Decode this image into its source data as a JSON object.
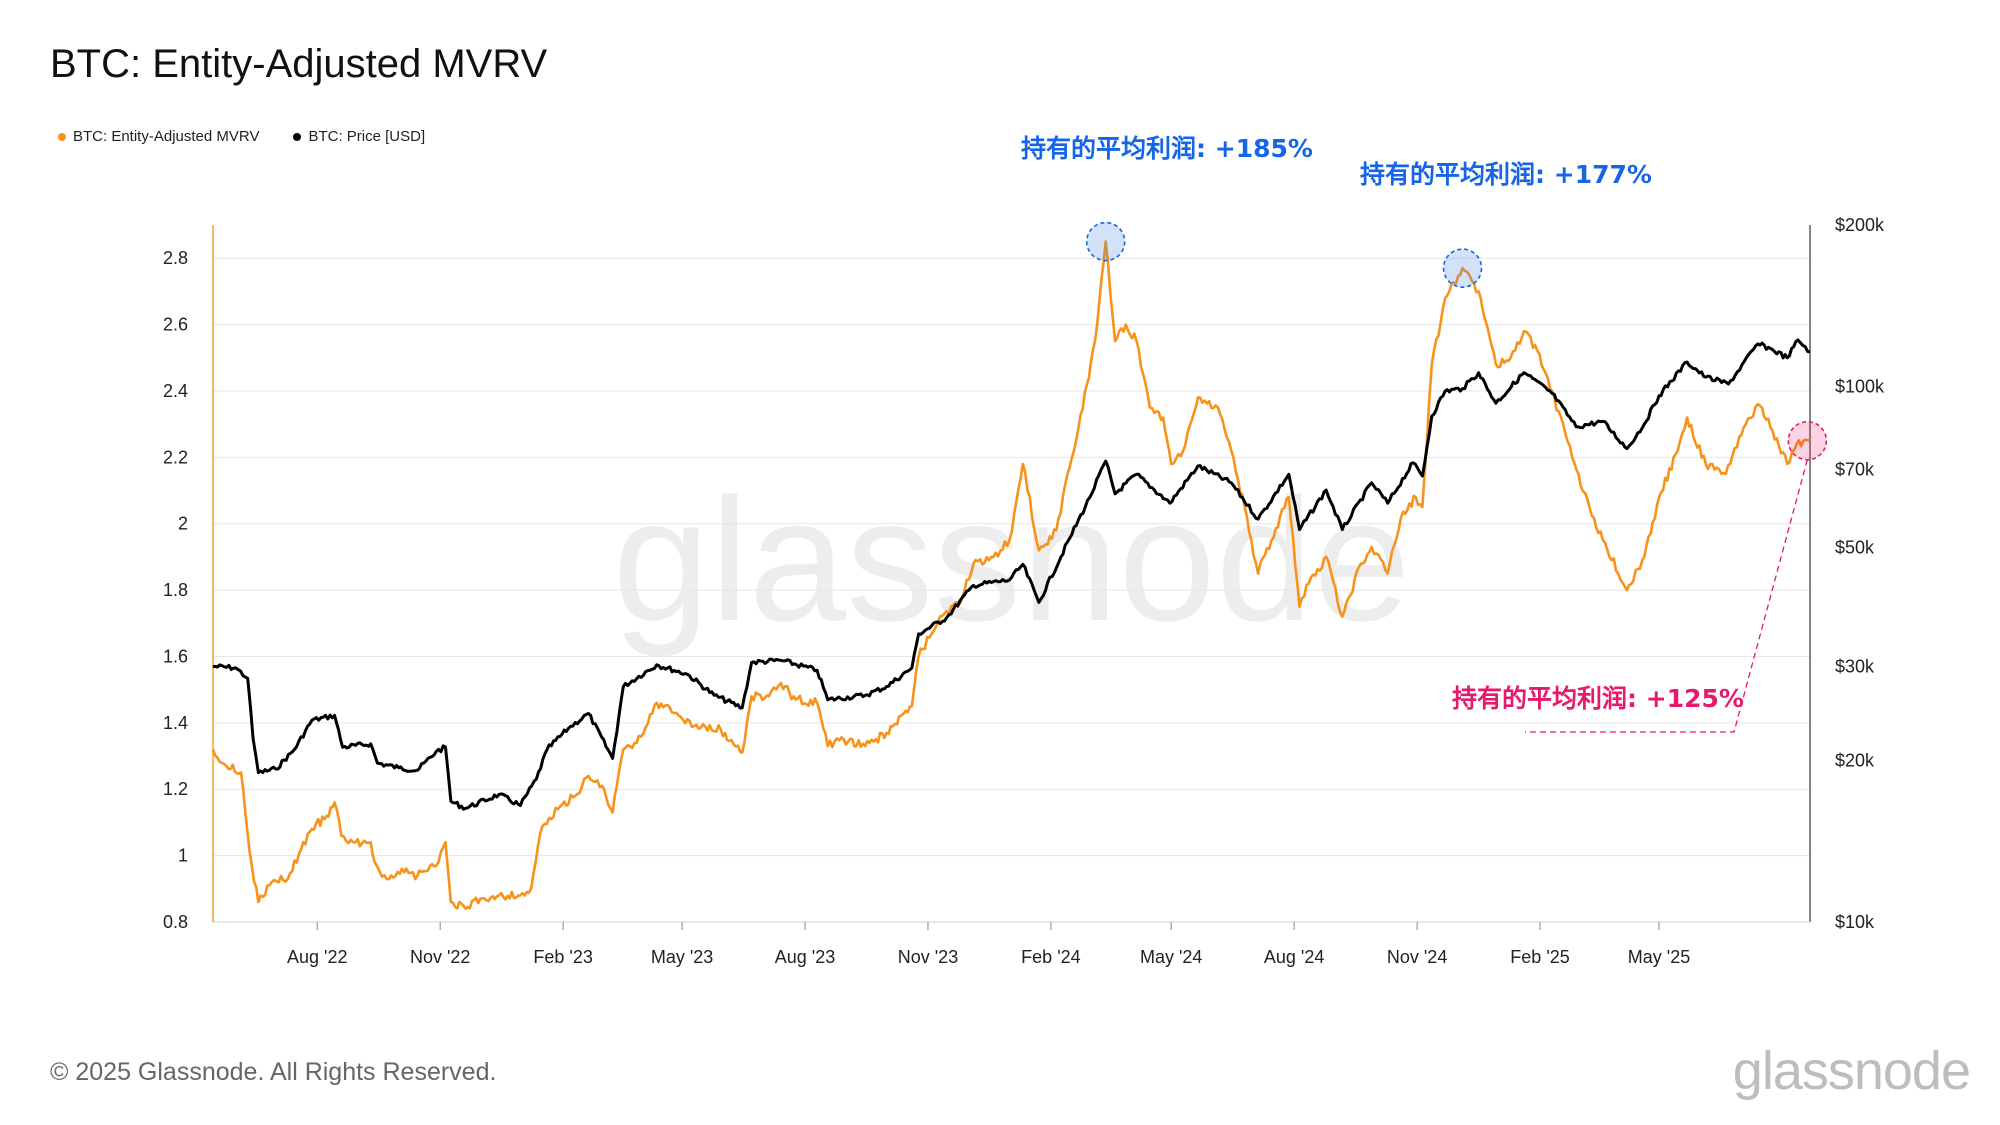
{
  "title": "BTC: Entity-Adjusted MVRV",
  "legend": [
    {
      "label": "BTC: Entity-Adjusted MVRV",
      "color": "#f7931a"
    },
    {
      "label": "BTC: Price [USD]",
      "color": "#000000"
    }
  ],
  "footer": "© 2025 Glassnode. All Rights Reserved.",
  "watermark": "glassnode",
  "logo": "glassnode",
  "annotations": [
    {
      "text": "持有的平均利润: +185%",
      "color": "#1565e8",
      "date": "2024-03-13",
      "mvrv": 2.85
    },
    {
      "text": "持有的平均利润: +177%",
      "color": "#1565e8",
      "date": "2024-12-05",
      "mvrv": 2.77
    },
    {
      "text": "持有的平均利润: +125%",
      "color": "#e8186c",
      "date": "2025-08-20",
      "mvrv": 2.25
    }
  ],
  "chart_data": {
    "type": "line",
    "x_range": [
      "2022-05-15",
      "2025-08-22"
    ],
    "x_ticks": [
      {
        "label": "Aug '22",
        "date": "2022-08-01"
      },
      {
        "label": "Nov '22",
        "date": "2022-11-01"
      },
      {
        "label": "Feb '23",
        "date": "2023-02-01"
      },
      {
        "label": "May '23",
        "date": "2023-05-01"
      },
      {
        "label": "Aug '23",
        "date": "2023-08-01"
      },
      {
        "label": "Nov '23",
        "date": "2023-11-01"
      },
      {
        "label": "Feb '24",
        "date": "2024-02-01"
      },
      {
        "label": "May '24",
        "date": "2024-05-01"
      },
      {
        "label": "Aug '24",
        "date": "2024-08-01"
      },
      {
        "label": "Nov '24",
        "date": "2024-11-01"
      },
      {
        "label": "Feb '25",
        "date": "2025-02-01"
      },
      {
        "label": "May '25",
        "date": "2025-05-01"
      }
    ],
    "left_axis": {
      "ylim": [
        0.8,
        2.9
      ],
      "ticks": [
        {
          "value": 0.8,
          "label": "0.8"
        },
        {
          "value": 1.0,
          "label": "1"
        },
        {
          "value": 1.2,
          "label": "1.2"
        },
        {
          "value": 1.4,
          "label": "1.4"
        },
        {
          "value": 1.6,
          "label": "1.6"
        },
        {
          "value": 1.8,
          "label": "1.8"
        },
        {
          "value": 2.0,
          "label": "2"
        },
        {
          "value": 2.2,
          "label": "2.2"
        },
        {
          "value": 2.4,
          "label": "2.4"
        },
        {
          "value": 2.6,
          "label": "2.6"
        },
        {
          "value": 2.8,
          "label": "2.8"
        }
      ]
    },
    "right_axis": {
      "scale": "log",
      "ylim": [
        10000,
        200000
      ],
      "ticks": [
        {
          "value": 10000,
          "label": "$10k"
        },
        {
          "value": 20000,
          "label": "$20k"
        },
        {
          "value": 30000,
          "label": "$30k"
        },
        {
          "value": 50000,
          "label": "$50k"
        },
        {
          "value": 70000,
          "label": "$70k"
        },
        {
          "value": 100000,
          "label": "$100k"
        },
        {
          "value": 200000,
          "label": "$200k"
        }
      ]
    },
    "grid": true,
    "series": [
      {
        "name": "BTC: Entity-Adjusted MVRV",
        "axis": "left",
        "color": "#f7931a",
        "points": [
          [
            "2022-05-15",
            1.32
          ],
          [
            "2022-05-25",
            1.27
          ],
          [
            "2022-06-05",
            1.25
          ],
          [
            "2022-06-13",
            0.97
          ],
          [
            "2022-06-18",
            0.86
          ],
          [
            "2022-06-28",
            0.92
          ],
          [
            "2022-07-10",
            0.93
          ],
          [
            "2022-07-20",
            1.02
          ],
          [
            "2022-07-28",
            1.08
          ],
          [
            "2022-08-08",
            1.12
          ],
          [
            "2022-08-14",
            1.16
          ],
          [
            "2022-08-19",
            1.06
          ],
          [
            "2022-08-28",
            1.04
          ],
          [
            "2022-09-10",
            1.04
          ],
          [
            "2022-09-13",
            0.98
          ],
          [
            "2022-09-22",
            0.93
          ],
          [
            "2022-10-05",
            0.95
          ],
          [
            "2022-10-15",
            0.94
          ],
          [
            "2022-10-29",
            0.97
          ],
          [
            "2022-11-05",
            1.04
          ],
          [
            "2022-11-09",
            0.86
          ],
          [
            "2022-11-20",
            0.84
          ],
          [
            "2022-12-01",
            0.87
          ],
          [
            "2022-12-15",
            0.88
          ],
          [
            "2022-12-31",
            0.88
          ],
          [
            "2023-01-08",
            0.9
          ],
          [
            "2023-01-15",
            1.07
          ],
          [
            "2023-01-28",
            1.14
          ],
          [
            "2023-02-10",
            1.18
          ],
          [
            "2023-02-20",
            1.24
          ],
          [
            "2023-03-02",
            1.21
          ],
          [
            "2023-03-10",
            1.13
          ],
          [
            "2023-03-18",
            1.32
          ],
          [
            "2023-03-28",
            1.34
          ],
          [
            "2023-04-12",
            1.46
          ],
          [
            "2023-04-25",
            1.43
          ],
          [
            "2023-05-10",
            1.39
          ],
          [
            "2023-05-30",
            1.38
          ],
          [
            "2023-06-15",
            1.31
          ],
          [
            "2023-06-22",
            1.48
          ],
          [
            "2023-07-05",
            1.48
          ],
          [
            "2023-07-14",
            1.52
          ],
          [
            "2023-07-25",
            1.47
          ],
          [
            "2023-08-10",
            1.46
          ],
          [
            "2023-08-18",
            1.33
          ],
          [
            "2023-08-30",
            1.35
          ],
          [
            "2023-09-15",
            1.33
          ],
          [
            "2023-10-01",
            1.37
          ],
          [
            "2023-10-20",
            1.45
          ],
          [
            "2023-10-25",
            1.6
          ],
          [
            "2023-11-10",
            1.72
          ],
          [
            "2023-11-25",
            1.76
          ],
          [
            "2023-12-05",
            1.88
          ],
          [
            "2023-12-20",
            1.9
          ],
          [
            "2024-01-01",
            1.95
          ],
          [
            "2024-01-11",
            2.18
          ],
          [
            "2024-01-23",
            1.92
          ],
          [
            "2024-02-05",
            1.98
          ],
          [
            "2024-02-15",
            2.17
          ],
          [
            "2024-02-28",
            2.42
          ],
          [
            "2024-03-05",
            2.55
          ],
          [
            "2024-03-13",
            2.85
          ],
          [
            "2024-03-20",
            2.55
          ],
          [
            "2024-03-28",
            2.6
          ],
          [
            "2024-04-05",
            2.55
          ],
          [
            "2024-04-15",
            2.35
          ],
          [
            "2024-04-25",
            2.32
          ],
          [
            "2024-05-01",
            2.18
          ],
          [
            "2024-05-10",
            2.22
          ],
          [
            "2024-05-21",
            2.38
          ],
          [
            "2024-06-05",
            2.35
          ],
          [
            "2024-06-15",
            2.22
          ],
          [
            "2024-06-25",
            2.05
          ],
          [
            "2024-07-05",
            1.85
          ],
          [
            "2024-07-15",
            1.95
          ],
          [
            "2024-07-28",
            2.08
          ],
          [
            "2024-08-05",
            1.75
          ],
          [
            "2024-08-12",
            1.82
          ],
          [
            "2024-08-25",
            1.9
          ],
          [
            "2024-09-06",
            1.72
          ],
          [
            "2024-09-20",
            1.88
          ],
          [
            "2024-09-28",
            1.93
          ],
          [
            "2024-10-10",
            1.85
          ],
          [
            "2024-10-20",
            2.02
          ],
          [
            "2024-10-31",
            2.08
          ],
          [
            "2024-11-05",
            2.05
          ],
          [
            "2024-11-12",
            2.48
          ],
          [
            "2024-11-22",
            2.68
          ],
          [
            "2024-12-05",
            2.77
          ],
          [
            "2024-12-17",
            2.7
          ],
          [
            "2024-12-30",
            2.48
          ],
          [
            "2025-01-10",
            2.5
          ],
          [
            "2025-01-20",
            2.58
          ],
          [
            "2025-01-30",
            2.52
          ],
          [
            "2025-02-10",
            2.4
          ],
          [
            "2025-02-25",
            2.2
          ],
          [
            "2025-03-10",
            2.05
          ],
          [
            "2025-03-20",
            1.95
          ],
          [
            "2025-04-07",
            1.8
          ],
          [
            "2025-04-20",
            1.9
          ],
          [
            "2025-05-01",
            2.08
          ],
          [
            "2025-05-15",
            2.22
          ],
          [
            "2025-05-22",
            2.32
          ],
          [
            "2025-06-05",
            2.18
          ],
          [
            "2025-06-20",
            2.15
          ],
          [
            "2025-07-05",
            2.3
          ],
          [
            "2025-07-14",
            2.36
          ],
          [
            "2025-07-25",
            2.28
          ],
          [
            "2025-08-05",
            2.18
          ],
          [
            "2025-08-12",
            2.24
          ],
          [
            "2025-08-22",
            2.25
          ]
        ]
      },
      {
        "name": "BTC: Price [USD]",
        "axis": "right",
        "color": "#000000",
        "points": [
          [
            "2022-05-15",
            30000
          ],
          [
            "2022-06-01",
            29800
          ],
          [
            "2022-06-10",
            28500
          ],
          [
            "2022-06-14",
            22000
          ],
          [
            "2022-06-18",
            19000
          ],
          [
            "2022-07-01",
            19300
          ],
          [
            "2022-07-15",
            21000
          ],
          [
            "2022-07-28",
            23800
          ],
          [
            "2022-08-14",
            24300
          ],
          [
            "2022-08-20",
            21200
          ],
          [
            "2022-09-10",
            21500
          ],
          [
            "2022-09-15",
            19800
          ],
          [
            "2022-10-01",
            19400
          ],
          [
            "2022-10-15",
            19200
          ],
          [
            "2022-10-29",
            20800
          ],
          [
            "2022-11-05",
            21200
          ],
          [
            "2022-11-09",
            16800
          ],
          [
            "2022-11-20",
            16300
          ],
          [
            "2022-12-15",
            17300
          ],
          [
            "2022-12-31",
            16500
          ],
          [
            "2023-01-12",
            18500
          ],
          [
            "2023-01-20",
            21000
          ],
          [
            "2023-02-05",
            23000
          ],
          [
            "2023-02-20",
            24500
          ],
          [
            "2023-03-10",
            20200
          ],
          [
            "2023-03-18",
            27500
          ],
          [
            "2023-04-12",
            30200
          ],
          [
            "2023-05-05",
            29000
          ],
          [
            "2023-05-25",
            26500
          ],
          [
            "2023-06-15",
            25100
          ],
          [
            "2023-06-22",
            30500
          ],
          [
            "2023-07-14",
            30800
          ],
          [
            "2023-08-10",
            29500
          ],
          [
            "2023-08-18",
            26000
          ],
          [
            "2023-09-15",
            26500
          ],
          [
            "2023-10-01",
            27500
          ],
          [
            "2023-10-20",
            29800
          ],
          [
            "2023-10-25",
            34500
          ],
          [
            "2023-11-15",
            37000
          ],
          [
            "2023-12-05",
            42500
          ],
          [
            "2024-01-01",
            43500
          ],
          [
            "2024-01-11",
            46500
          ],
          [
            "2024-01-23",
            39500
          ],
          [
            "2024-02-15",
            52000
          ],
          [
            "2024-03-01",
            62000
          ],
          [
            "2024-03-13",
            72500
          ],
          [
            "2024-03-20",
            63000
          ],
          [
            "2024-04-05",
            68500
          ],
          [
            "2024-04-30",
            60500
          ],
          [
            "2024-05-21",
            71000
          ],
          [
            "2024-06-15",
            66000
          ],
          [
            "2024-07-05",
            56500
          ],
          [
            "2024-07-28",
            68500
          ],
          [
            "2024-08-05",
            54000
          ],
          [
            "2024-08-25",
            64000
          ],
          [
            "2024-09-06",
            54000
          ],
          [
            "2024-09-28",
            66000
          ],
          [
            "2024-10-10",
            60500
          ],
          [
            "2024-10-29",
            72000
          ],
          [
            "2024-11-05",
            68000
          ],
          [
            "2024-11-12",
            88000
          ],
          [
            "2024-11-22",
            98000
          ],
          [
            "2024-12-05",
            99000
          ],
          [
            "2024-12-17",
            106000
          ],
          [
            "2024-12-30",
            93000
          ],
          [
            "2025-01-20",
            106000
          ],
          [
            "2025-02-10",
            97000
          ],
          [
            "2025-02-28",
            84000
          ],
          [
            "2025-03-20",
            86000
          ],
          [
            "2025-04-07",
            76500
          ],
          [
            "2025-04-20",
            85000
          ],
          [
            "2025-05-01",
            96000
          ],
          [
            "2025-05-22",
            111000
          ],
          [
            "2025-06-05",
            104000
          ],
          [
            "2025-06-22",
            101000
          ],
          [
            "2025-07-14",
            120000
          ],
          [
            "2025-07-25",
            117000
          ],
          [
            "2025-08-05",
            113000
          ],
          [
            "2025-08-13",
            122000
          ],
          [
            "2025-08-22",
            116000
          ]
        ]
      }
    ]
  }
}
